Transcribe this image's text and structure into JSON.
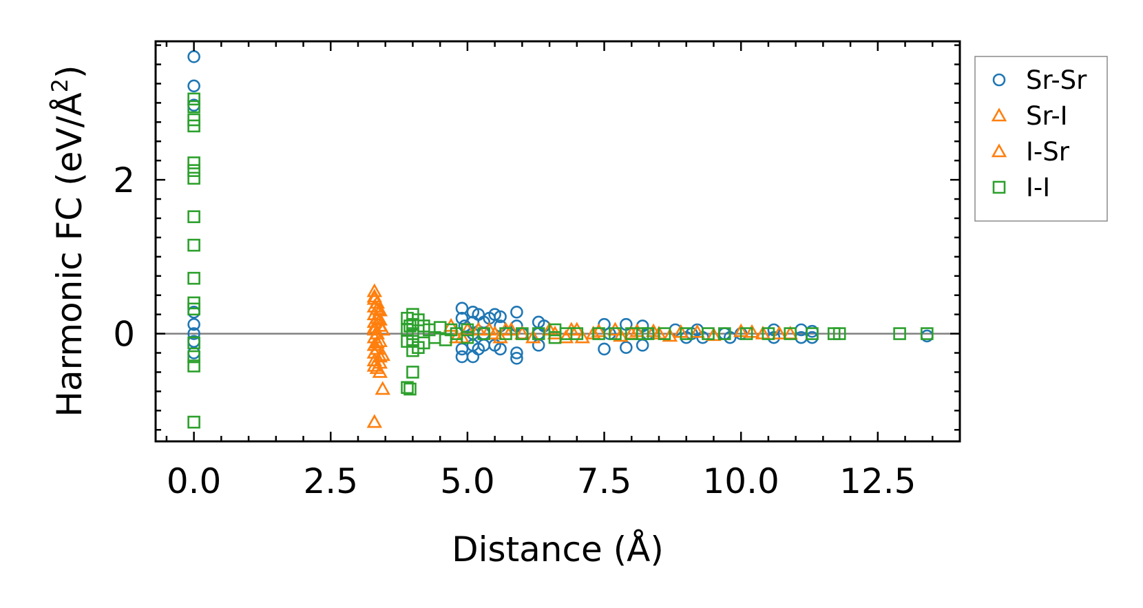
{
  "chart_data": {
    "type": "scatter",
    "title": "",
    "xlabel": "Distance (Å)",
    "ylabel_main": "Harmonic FC (eV/Å",
    "ylabel_sup": "2",
    "ylabel_close": ")",
    "xlim": [
      -0.7,
      14.0
    ],
    "ylim": [
      -1.4,
      3.8
    ],
    "x_ticks": [
      0.0,
      2.5,
      5.0,
      7.5,
      10.0,
      12.5
    ],
    "x_tick_labels": [
      "0.0",
      "2.5",
      "5.0",
      "7.5",
      "10.0",
      "12.5"
    ],
    "y_ticks": [
      0,
      2
    ],
    "y_tick_labels": [
      "0",
      "2"
    ],
    "zero_line": 0,
    "legend_position": "outside-right",
    "series": [
      {
        "name": "Sr-Sr",
        "marker": "circle",
        "color": "#1f77b4",
        "x": [
          0,
          0,
          0,
          0,
          0,
          0,
          0,
          0,
          4.9,
          4.9,
          4.9,
          4.9,
          4.95,
          5.1,
          5.1,
          5.1,
          5.1,
          5.1,
          5.2,
          5.2,
          5.3,
          5.3,
          5.3,
          5.4,
          5.5,
          5.5,
          5.6,
          5.6,
          5.6,
          5.9,
          5.9,
          5.9,
          5.9,
          6.0,
          6.3,
          6.3,
          6.3,
          6.4,
          7.5,
          7.5,
          7.6,
          7.9,
          7.9,
          8.2,
          8.2,
          8.3,
          8.8,
          9.0,
          9.1,
          9.2,
          9.3,
          9.7,
          9.8,
          10.0,
          10.6,
          10.6,
          11.1,
          11.1,
          11.3,
          11.3,
          13.4
        ],
        "y": [
          3.6,
          3.22,
          2.97,
          0.28,
          0.12,
          0.0,
          -0.1,
          -0.25,
          0.33,
          0.2,
          -0.2,
          -0.3,
          0.1,
          0.28,
          0.15,
          -0.15,
          -0.3,
          0.0,
          0.25,
          -0.2,
          0.15,
          -0.15,
          0.0,
          0.2,
          0.25,
          -0.15,
          0.22,
          0.1,
          -0.2,
          0.28,
          0.1,
          -0.25,
          -0.32,
          0.0,
          0.15,
          -0.15,
          0.0,
          0.1,
          0.12,
          -0.2,
          0.0,
          0.12,
          -0.18,
          0.1,
          -0.15,
          0.0,
          0.05,
          -0.05,
          0.0,
          0.05,
          -0.05,
          0.0,
          -0.05,
          0.0,
          0.05,
          -0.05,
          0.05,
          -0.05,
          0.03,
          -0.05,
          -0.03
        ]
      },
      {
        "name": "Sr-I",
        "marker": "triangle",
        "color": "#ff7f0e",
        "x": [
          3.3,
          3.3,
          3.3,
          3.3,
          3.3,
          3.3,
          3.3,
          3.3,
          3.3,
          3.3,
          3.35,
          3.35,
          3.35,
          3.35,
          3.35,
          3.4,
          3.4,
          3.4,
          3.4,
          3.4,
          3.3,
          4.7,
          4.8,
          5.0,
          5.4,
          5.6,
          5.7,
          6.0,
          6.5,
          6.8,
          7.0,
          7.3,
          7.7,
          8.0,
          8.4,
          8.7,
          9.2,
          10.0,
          10.4,
          10.9,
          3.45
        ],
        "y": [
          0.55,
          0.45,
          0.35,
          0.25,
          0.15,
          0.05,
          -0.05,
          -0.15,
          -0.25,
          -0.35,
          0.4,
          0.2,
          0.0,
          -0.2,
          -0.45,
          0.3,
          0.1,
          -0.1,
          -0.3,
          -0.5,
          -1.15,
          0.1,
          -0.05,
          0.05,
          0.05,
          -0.05,
          0.05,
          0.0,
          0.05,
          -0.05,
          0.05,
          0.0,
          0.05,
          0.0,
          0.03,
          -0.03,
          0.02,
          0.03,
          0.0,
          0.0,
          -0.72
        ]
      },
      {
        "name": "I-Sr",
        "marker": "triangle",
        "color": "#ff7f0e",
        "x": [
          3.3,
          3.3,
          3.3,
          3.35,
          3.35,
          3.4,
          3.4,
          3.45,
          3.45,
          4.9,
          5.2,
          5.5,
          5.8,
          6.2,
          6.6,
          6.9,
          7.1,
          7.4,
          7.8,
          8.1,
          8.5,
          8.9,
          9.5,
          10.2,
          10.7
        ],
        "y": [
          0.48,
          0.08,
          -0.42,
          0.32,
          -0.12,
          0.18,
          -0.38,
          0.05,
          -0.28,
          -0.05,
          0.05,
          0.0,
          0.05,
          -0.05,
          0.0,
          0.05,
          -0.05,
          0.03,
          -0.03,
          0.03,
          0.0,
          0.02,
          -0.02,
          0.02,
          0.0
        ]
      },
      {
        "name": "I-I",
        "marker": "square",
        "color": "#2ca02c",
        "x": [
          0,
          0,
          0,
          0,
          0,
          0,
          0,
          0,
          0,
          0,
          0,
          0,
          0,
          0,
          0,
          0,
          3.9,
          3.9,
          3.9,
          3.9,
          3.95,
          3.95,
          4.0,
          4.0,
          4.0,
          4.0,
          4.0,
          4.0,
          4.1,
          4.1,
          4.2,
          4.2,
          4.3,
          4.4,
          4.5,
          4.6,
          4.7,
          4.8,
          5.0,
          5.0,
          5.3,
          5.7,
          6.0,
          6.3,
          6.6,
          6.6,
          6.8,
          7.0,
          7.4,
          7.7,
          8.0,
          8.2,
          8.3,
          8.6,
          9.0,
          9.4,
          9.7,
          10.1,
          10.5,
          10.9,
          11.3,
          11.7,
          11.8,
          12.9,
          13.4
        ],
        "y": [
          3.05,
          2.95,
          2.78,
          2.7,
          2.22,
          2.12,
          2.02,
          1.52,
          1.15,
          0.72,
          0.4,
          0.32,
          -0.12,
          -0.3,
          -0.42,
          -1.15,
          0.2,
          0.05,
          -0.1,
          -0.7,
          0.1,
          -0.72,
          0.25,
          0.12,
          0.0,
          -0.1,
          -0.22,
          -0.5,
          0.18,
          -0.18,
          0.1,
          -0.12,
          0.05,
          -0.05,
          0.08,
          -0.08,
          0.05,
          0.0,
          0.05,
          -0.05,
          0.0,
          0.0,
          0.0,
          0.0,
          0.05,
          -0.05,
          0.0,
          0.0,
          0.0,
          0.0,
          0.0,
          0.0,
          0.0,
          0.0,
          0.0,
          0.0,
          0.0,
          0.0,
          0.0,
          0.0,
          0.0,
          0.0,
          0.0,
          0.0,
          0.0
        ]
      }
    ]
  }
}
